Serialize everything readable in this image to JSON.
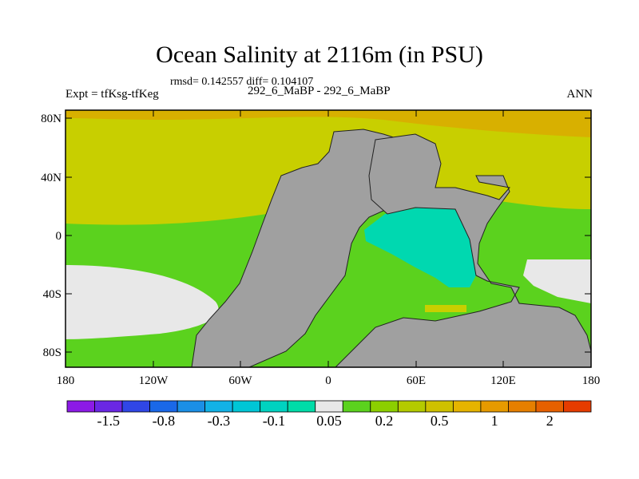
{
  "title": "Ocean Salinity at 2116m (in PSU)",
  "stats": "rmsd= 0.142557 diff= 0.104107",
  "subtitle": "292_6_MaBP - 292_6_MaBP",
  "expt": "Expt = tfKsg-tfKeg",
  "season": "ANN",
  "map": {
    "lat_ticks": [
      "80N",
      "40N",
      "0",
      "40S",
      "80S"
    ],
    "lon_ticks": [
      "180",
      "120W",
      "60W",
      "0",
      "60E",
      "120E",
      "180"
    ],
    "land_color": "#a0a0a0",
    "regions": [
      {
        "name": "high-latitude-north",
        "color": "#d8b000"
      },
      {
        "name": "north-mid-latitudes",
        "color": "#c8cf00"
      },
      {
        "name": "tropics",
        "color": "#5bd21e"
      },
      {
        "name": "south-cold-zone",
        "color": "#e8e8e8"
      },
      {
        "name": "tethys-basin",
        "color": "#00d8b0"
      }
    ]
  },
  "colorbar": {
    "colors": [
      "#8c1ae6",
      "#6a27e4",
      "#3046e6",
      "#1a68e8",
      "#1b8fe6",
      "#12b2e6",
      "#00c6d6",
      "#00d2c0",
      "#00dca8",
      "#e8e8e8",
      "#5bd21e",
      "#8ccf00",
      "#b4ca00",
      "#cfc100",
      "#e6b400",
      "#e69a00",
      "#e67f00",
      "#e66000",
      "#e63c00"
    ],
    "labels": [
      "-1.5",
      "-0.8",
      "-0.3",
      "-0.1",
      "0.05",
      "0.2",
      "0.5",
      "1",
      "2"
    ]
  }
}
